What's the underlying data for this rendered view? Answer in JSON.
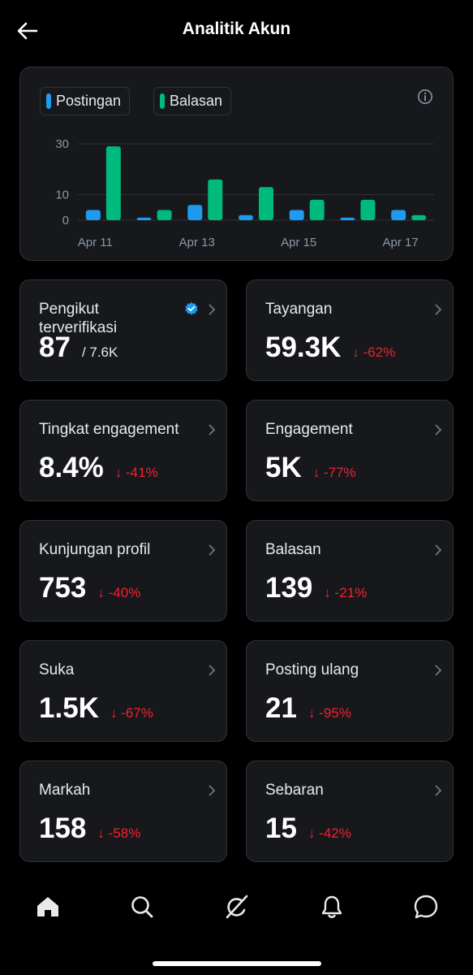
{
  "header": {
    "title": "Analitik Akun",
    "back_icon": "arrow-left-icon"
  },
  "colors": {
    "posts": "#1d9bf0",
    "replies": "#00ba7c",
    "negative": "#f4212e",
    "verified": "#1d9bf0"
  },
  "chart_data": {
    "type": "bar",
    "legend": [
      "Postingan",
      "Balasan"
    ],
    "categories": [
      "Apr 11",
      "Apr 12",
      "Apr 13",
      "Apr 14",
      "Apr 15",
      "Apr 16",
      "Apr 17"
    ],
    "x_tick_labels": [
      "Apr 11",
      "Apr 13",
      "Apr 15",
      "Apr 17"
    ],
    "y_ticks": [
      0,
      10,
      30
    ],
    "ylim": [
      0,
      30
    ],
    "series": [
      {
        "name": "Postingan",
        "values": [
          4,
          1,
          6,
          2,
          4,
          1,
          4
        ]
      },
      {
        "name": "Balasan",
        "values": [
          29,
          4,
          16,
          13,
          8,
          8,
          2
        ]
      }
    ],
    "grid": true,
    "legend_placement": "top-left"
  },
  "cards": [
    {
      "label": "Pengikut terverifikasi",
      "value": "87",
      "sub": "/ 7.6K",
      "verified": true
    },
    {
      "label": "Tayangan",
      "value": "59.3K",
      "change": "↓ -62%"
    },
    {
      "label": "Tingkat engagement",
      "value": "8.4%",
      "change": "↓ -41%"
    },
    {
      "label": "Engagement",
      "value": "5K",
      "change": "↓ -77%"
    },
    {
      "label": "Kunjungan profil",
      "value": "753",
      "change": "↓ -40%"
    },
    {
      "label": "Balasan",
      "value": "139",
      "change": "↓ -21%"
    },
    {
      "label": "Suka",
      "value": "1.5K",
      "change": "↓ -67%"
    },
    {
      "label": "Posting ulang",
      "value": "21",
      "change": "↓ -95%"
    },
    {
      "label": "Markah",
      "value": "158",
      "change": "↓ -58%"
    },
    {
      "label": "Sebaran",
      "value": "15",
      "change": "↓ -42%"
    }
  ],
  "tabbar": {
    "items": [
      "home-icon",
      "search-icon",
      "grok-icon",
      "notifications-bell-icon",
      "messages-icon"
    ]
  }
}
